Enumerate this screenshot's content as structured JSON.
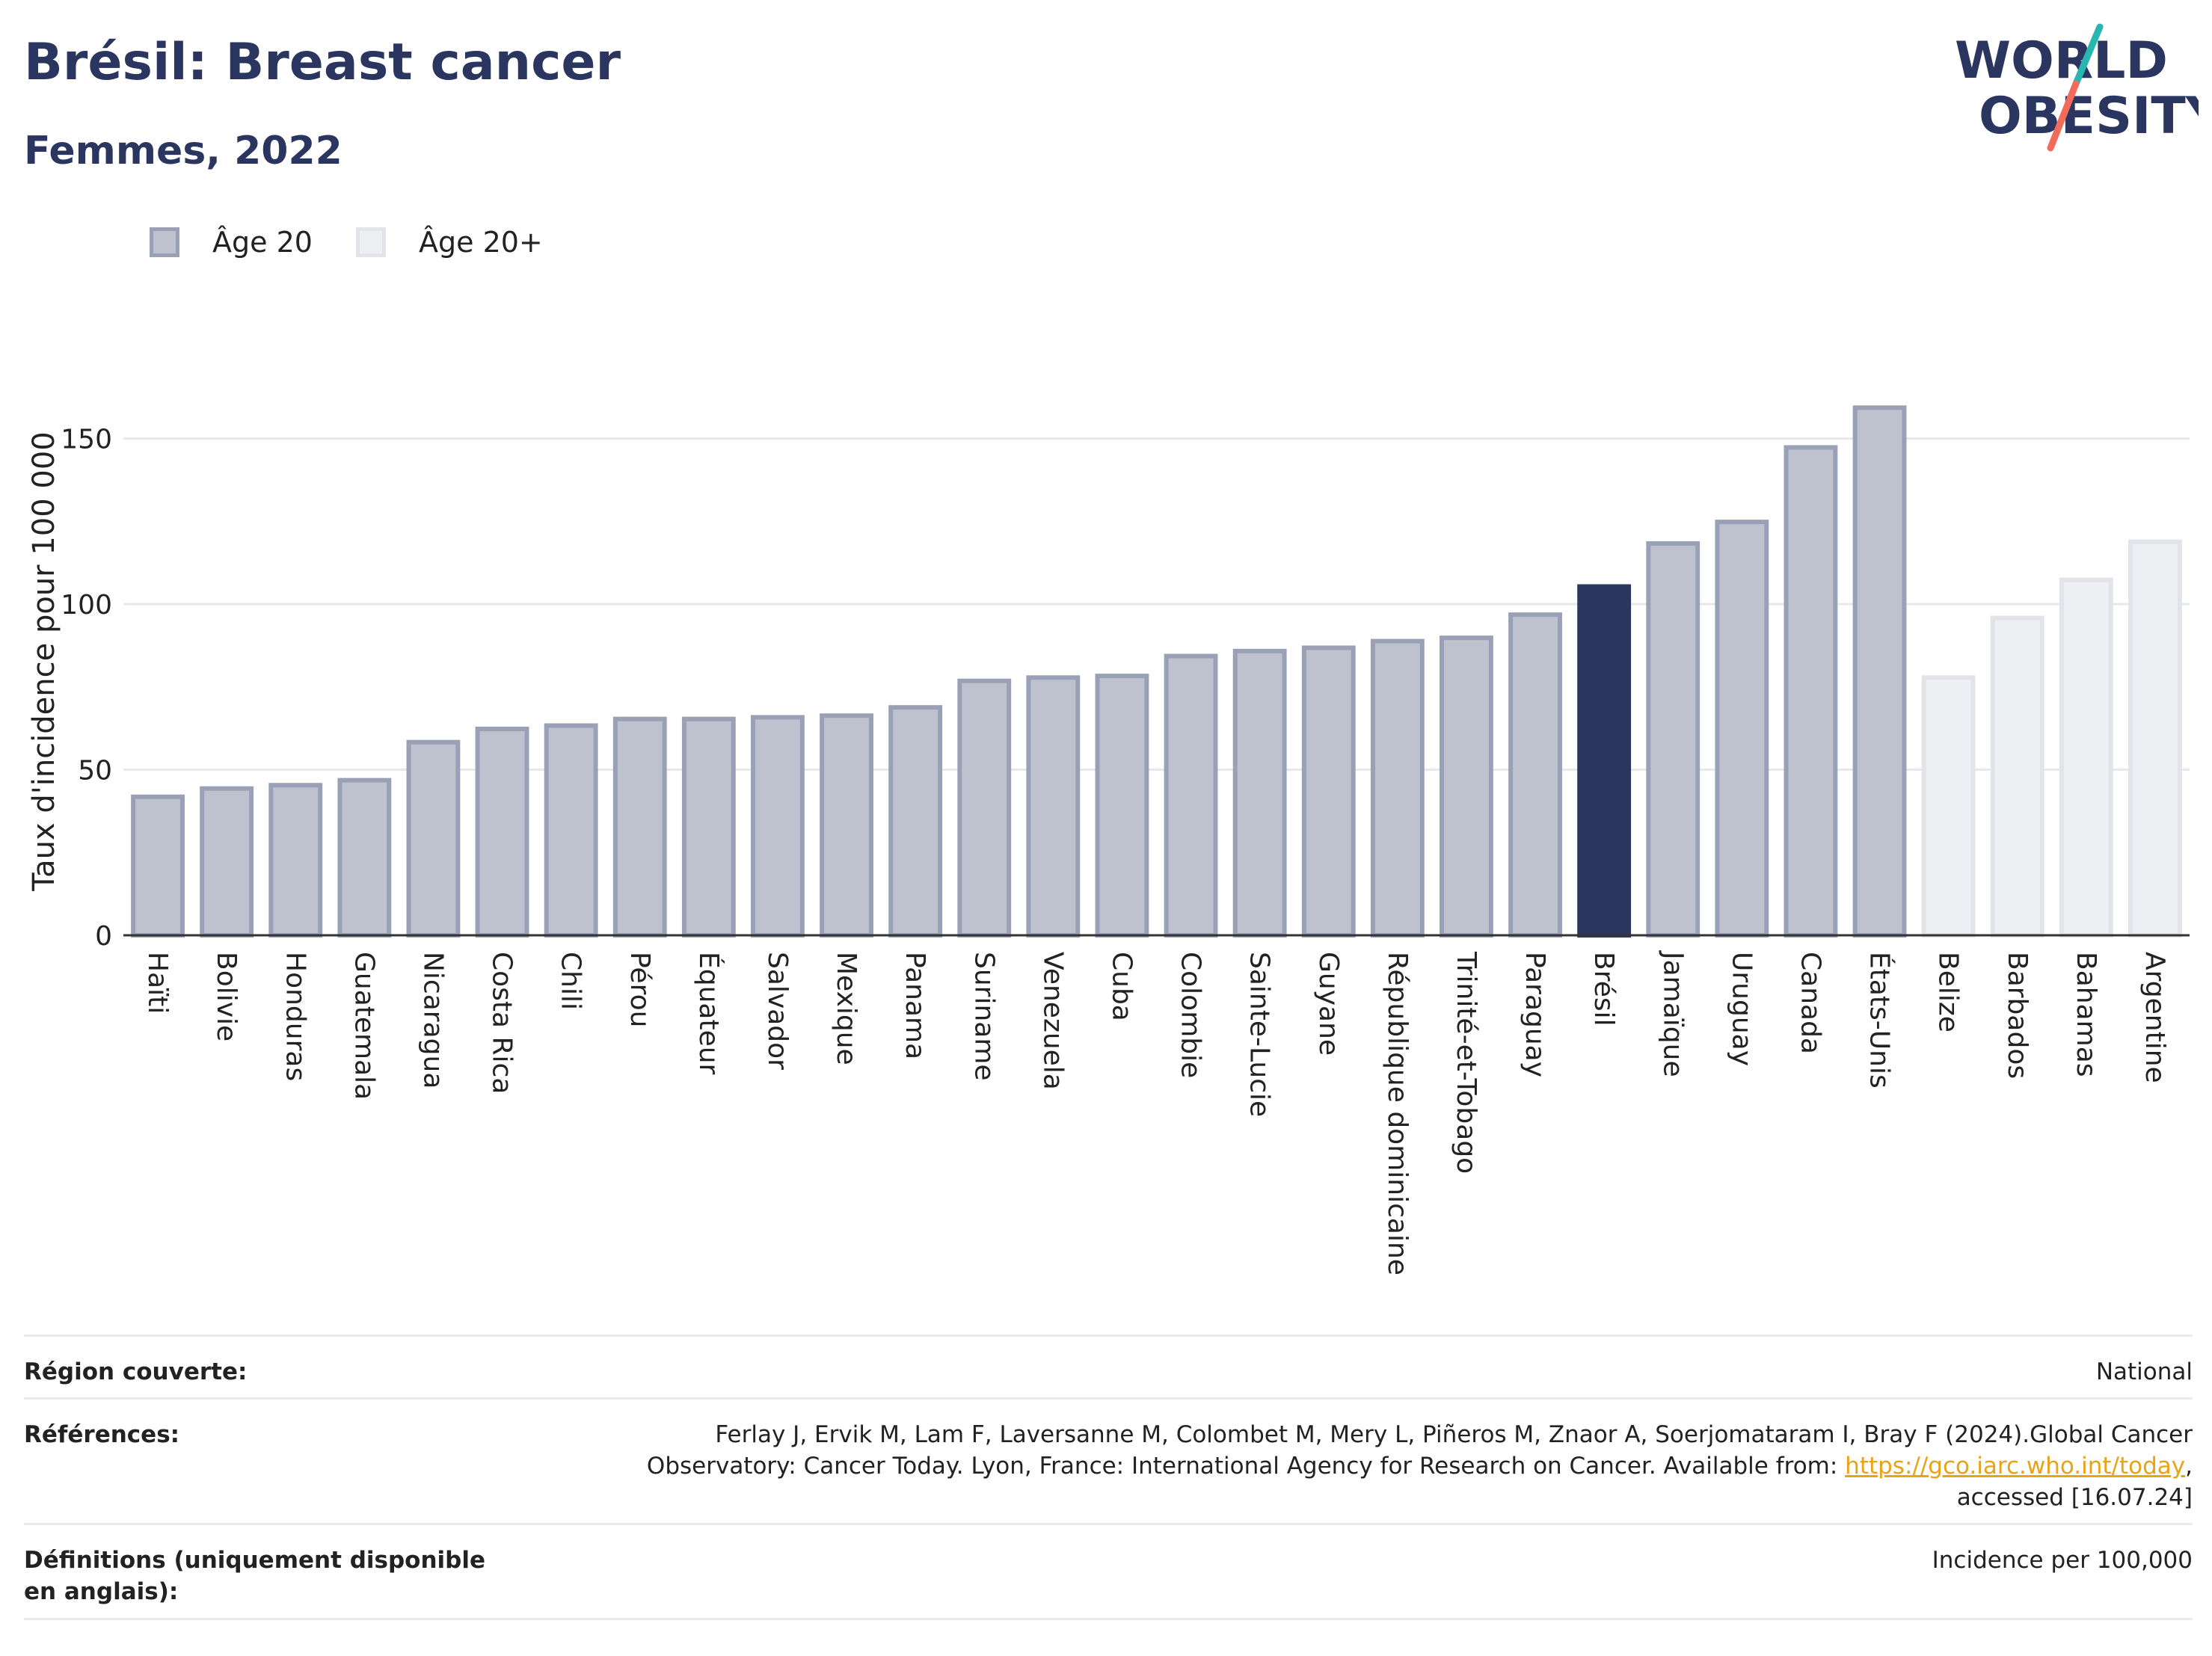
{
  "header": {
    "title": "Brésil: Breast cancer",
    "subtitle": "Femmes, 2022",
    "logo_line1": "WORLD",
    "logo_line2": "OBESITY"
  },
  "legend": [
    {
      "label": "Âge 20",
      "fill": "#bec2cf",
      "border": "#9aa0b5"
    },
    {
      "label": "Âge 20+",
      "fill": "#eeeff3",
      "border": "#e2e4ea"
    }
  ],
  "colors": {
    "highlight": "#2a3560",
    "age20_fill": "#bec2cf",
    "age20_border": "#9aa0b5",
    "age20plus_fill": "#eeeff3",
    "age20plus_border": "#e2e4ea",
    "grid": "#e6e8ee",
    "logo_slash_teal": "#27b6b0",
    "logo_slash_coral": "#f06b5a"
  },
  "chart_data": {
    "type": "bar",
    "ylabel": "Taux d'incidence pour 100 000",
    "ylim": [
      0,
      170
    ],
    "yticks": [
      0,
      50,
      100,
      150
    ],
    "grid": true,
    "legend_position": "top-left",
    "categories": [
      "Haïti",
      "Bolivie",
      "Honduras",
      "Guatemala",
      "Nicaragua",
      "Costa Rica",
      "Chili",
      "Pérou",
      "Équateur",
      "Salvador",
      "Mexique",
      "Panama",
      "Suriname",
      "Venezuela",
      "Cuba",
      "Colombie",
      "Sainte-Lucie",
      "Guyane",
      "République dominicaine",
      "Trinité-et-Tobago",
      "Paraguay",
      "Brésil",
      "Jamaïque",
      "Uruguay",
      "Canada",
      "États-Unis",
      "Belize",
      "Barbados",
      "Bahamas",
      "Argentine"
    ],
    "values": [
      42.5,
      45,
      46,
      47.5,
      59,
      63,
      64,
      66,
      66,
      66.5,
      67,
      69.5,
      77.5,
      78.5,
      79,
      85,
      86.5,
      87.5,
      89.5,
      90.5,
      97.5,
      106,
      119,
      125.5,
      148,
      160,
      78.5,
      96.5,
      108,
      119.5
    ],
    "groups": [
      "Âge 20",
      "Âge 20",
      "Âge 20",
      "Âge 20",
      "Âge 20",
      "Âge 20",
      "Âge 20",
      "Âge 20",
      "Âge 20",
      "Âge 20",
      "Âge 20",
      "Âge 20",
      "Âge 20",
      "Âge 20",
      "Âge 20",
      "Âge 20",
      "Âge 20",
      "Âge 20",
      "Âge 20",
      "Âge 20",
      "Âge 20",
      "Âge 20",
      "Âge 20",
      "Âge 20",
      "Âge 20",
      "Âge 20",
      "Âge 20+",
      "Âge 20+",
      "Âge 20+",
      "Âge 20+"
    ],
    "highlight": "Brésil"
  },
  "info": [
    {
      "key": "Région couverte:",
      "value": "National"
    },
    {
      "key": "Références:",
      "value_before_link": "Ferlay J, Ervik M, Lam F, Laversanne M, Colombet M, Mery L, Piñeros M, Znaor A, Soerjomataram I, Bray F (2024).Global Cancer Observatory: Cancer Today. Lyon, France: International Agency for Research on Cancer. Available from: ",
      "link": "https://gco.iarc.who.int/today",
      "value_after_link": ", accessed [16.07.24]"
    },
    {
      "key": "Définitions (uniquement disponible en anglais):",
      "value": "Incidence per 100,000"
    }
  ]
}
